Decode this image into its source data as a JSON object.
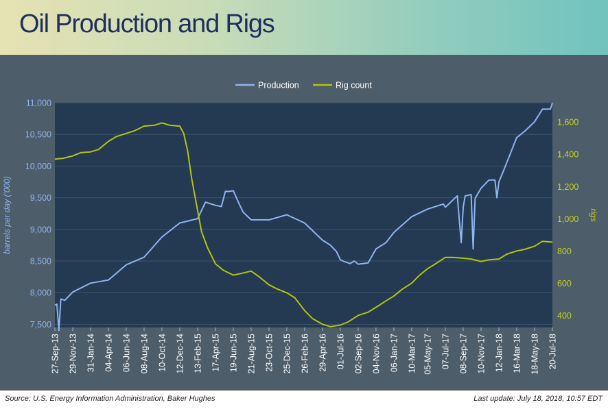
{
  "page": {
    "title": "Oil Production and Rigs",
    "source": "Source: U.S. Energy Information Administration, Baker Hughes",
    "last_update": "Last update: July 18, 2018, 10:57 EDT"
  },
  "colors": {
    "production": "#8fb4f0",
    "rigs": "#b5c40e",
    "plot_bg": "#233a52",
    "left_axis_text": "#8fb4f0",
    "right_axis_text": "#c8d21a"
  },
  "chart_data": {
    "type": "line",
    "legend": [
      "Production",
      "Rig count"
    ],
    "legend_position": "top-center",
    "ylabel_left": "barrels per day ('000)",
    "ylabel_right": "rigs",
    "ylim_left": [
      7450,
      11000
    ],
    "ylim_right": [
      325,
      1720
    ],
    "yticks_left": [
      "7,500",
      "8,000",
      "8,500",
      "9,000",
      "9,500",
      "10,000",
      "10,500",
      "11,000"
    ],
    "yticks_left_values": [
      7500,
      8000,
      8500,
      9000,
      9500,
      10000,
      10500,
      11000
    ],
    "yticks_right": [
      "400",
      "600",
      "800",
      "1,000",
      "1,200",
      "1,400",
      "1,600"
    ],
    "yticks_right_values": [
      400,
      600,
      800,
      1000,
      1200,
      1400,
      1600
    ],
    "xticks": [
      "27-Sep-13",
      "29-Nov-13",
      "31-Jan-14",
      "04-Apr-14",
      "06-Jun-14",
      "08-Aug-14",
      "10-Oct-14",
      "12-Dec-14",
      "13-Feb-15",
      "17-Apr-15",
      "19-Jun-15",
      "21-Aug-15",
      "23-Oct-15",
      "25-Dec-15",
      "26-Feb-16",
      "29-Apr-16",
      "01-Jul-16",
      "02-Sep-16",
      "04-Nov-16",
      "06-Jan-17",
      "10-Mar-17",
      "05-May-17",
      "07-Jul-17",
      "08-Sep-17",
      "10-Nov-17",
      "12-Jan-18",
      "16-Mar-18",
      "18-May-18",
      "20-Jul-18"
    ],
    "series": [
      {
        "name": "Production",
        "axis": "left",
        "x": [
          "2013-09-27",
          "2013-10-04",
          "2013-10-11",
          "2013-10-18",
          "2013-11-01",
          "2013-11-29",
          "2014-01-31",
          "2014-04-04",
          "2014-06-06",
          "2014-08-08",
          "2014-10-10",
          "2014-12-12",
          "2015-02-13",
          "2015-03-13",
          "2015-04-17",
          "2015-05-08",
          "2015-05-22",
          "2015-06-05",
          "2015-06-19",
          "2015-07-10",
          "2015-07-24",
          "2015-08-21",
          "2015-10-23",
          "2015-12-25",
          "2016-02-26",
          "2016-04-29",
          "2016-05-27",
          "2016-06-17",
          "2016-07-01",
          "2016-07-15",
          "2016-08-05",
          "2016-08-19",
          "2016-09-02",
          "2016-10-07",
          "2016-11-04",
          "2016-12-09",
          "2017-01-06",
          "2017-03-10",
          "2017-05-05",
          "2017-06-30",
          "2017-07-07",
          "2017-08-18",
          "2017-09-01",
          "2017-09-08",
          "2017-09-15",
          "2017-10-06",
          "2017-10-13",
          "2017-10-20",
          "2017-11-10",
          "2017-12-08",
          "2017-12-29",
          "2018-01-05",
          "2018-01-12",
          "2018-01-26",
          "2018-03-16",
          "2018-04-13",
          "2018-05-18",
          "2018-06-15",
          "2018-07-13",
          "2018-07-20"
        ],
        "values": [
          7800,
          7820,
          7400,
          7900,
          7880,
          8010,
          8150,
          8200,
          8440,
          8560,
          8880,
          9100,
          9170,
          9430,
          9380,
          9360,
          9600,
          9600,
          9610,
          9400,
          9270,
          9150,
          9150,
          9230,
          9100,
          8830,
          8750,
          8650,
          8520,
          8490,
          8460,
          8500,
          8450,
          8470,
          8690,
          8790,
          8950,
          9200,
          9320,
          9400,
          9350,
          9530,
          8790,
          9350,
          9530,
          9550,
          8690,
          9490,
          9650,
          9780,
          9780,
          9500,
          9750,
          9900,
          10450,
          10550,
          10700,
          10900,
          10900,
          11000
        ]
      },
      {
        "name": "Rig count",
        "axis": "right",
        "x": [
          "2013-09-27",
          "2013-10-25",
          "2013-11-29",
          "2013-12-27",
          "2014-01-31",
          "2014-02-28",
          "2014-04-04",
          "2014-05-02",
          "2014-06-06",
          "2014-07-04",
          "2014-08-08",
          "2014-09-12",
          "2014-10-10",
          "2014-11-07",
          "2014-12-12",
          "2014-12-26",
          "2015-01-09",
          "2015-01-23",
          "2015-02-13",
          "2015-02-27",
          "2015-03-20",
          "2015-04-17",
          "2015-05-15",
          "2015-06-19",
          "2015-07-17",
          "2015-08-21",
          "2015-09-18",
          "2015-10-23",
          "2015-11-20",
          "2015-12-25",
          "2016-01-22",
          "2016-02-26",
          "2016-03-25",
          "2016-04-29",
          "2016-05-27",
          "2016-07-01",
          "2016-07-29",
          "2016-09-02",
          "2016-10-07",
          "2016-11-04",
          "2016-12-09",
          "2017-01-06",
          "2017-02-03",
          "2017-03-10",
          "2017-04-07",
          "2017-05-05",
          "2017-06-02",
          "2017-07-07",
          "2017-08-04",
          "2017-09-08",
          "2017-10-06",
          "2017-11-10",
          "2017-12-08",
          "2018-01-12",
          "2018-02-09",
          "2018-03-16",
          "2018-04-13",
          "2018-05-18",
          "2018-06-15",
          "2018-07-20"
        ],
        "values": [
          1370,
          1375,
          1390,
          1410,
          1415,
          1430,
          1480,
          1510,
          1530,
          1545,
          1575,
          1580,
          1595,
          1580,
          1575,
          1530,
          1420,
          1250,
          1050,
          920,
          820,
          720,
          680,
          650,
          660,
          675,
          640,
          590,
          565,
          540,
          510,
          430,
          380,
          345,
          330,
          340,
          360,
          400,
          420,
          450,
          490,
          520,
          560,
          600,
          650,
          690,
          720,
          760,
          760,
          755,
          750,
          735,
          745,
          750,
          780,
          800,
          810,
          830,
          860,
          855
        ]
      }
    ]
  }
}
